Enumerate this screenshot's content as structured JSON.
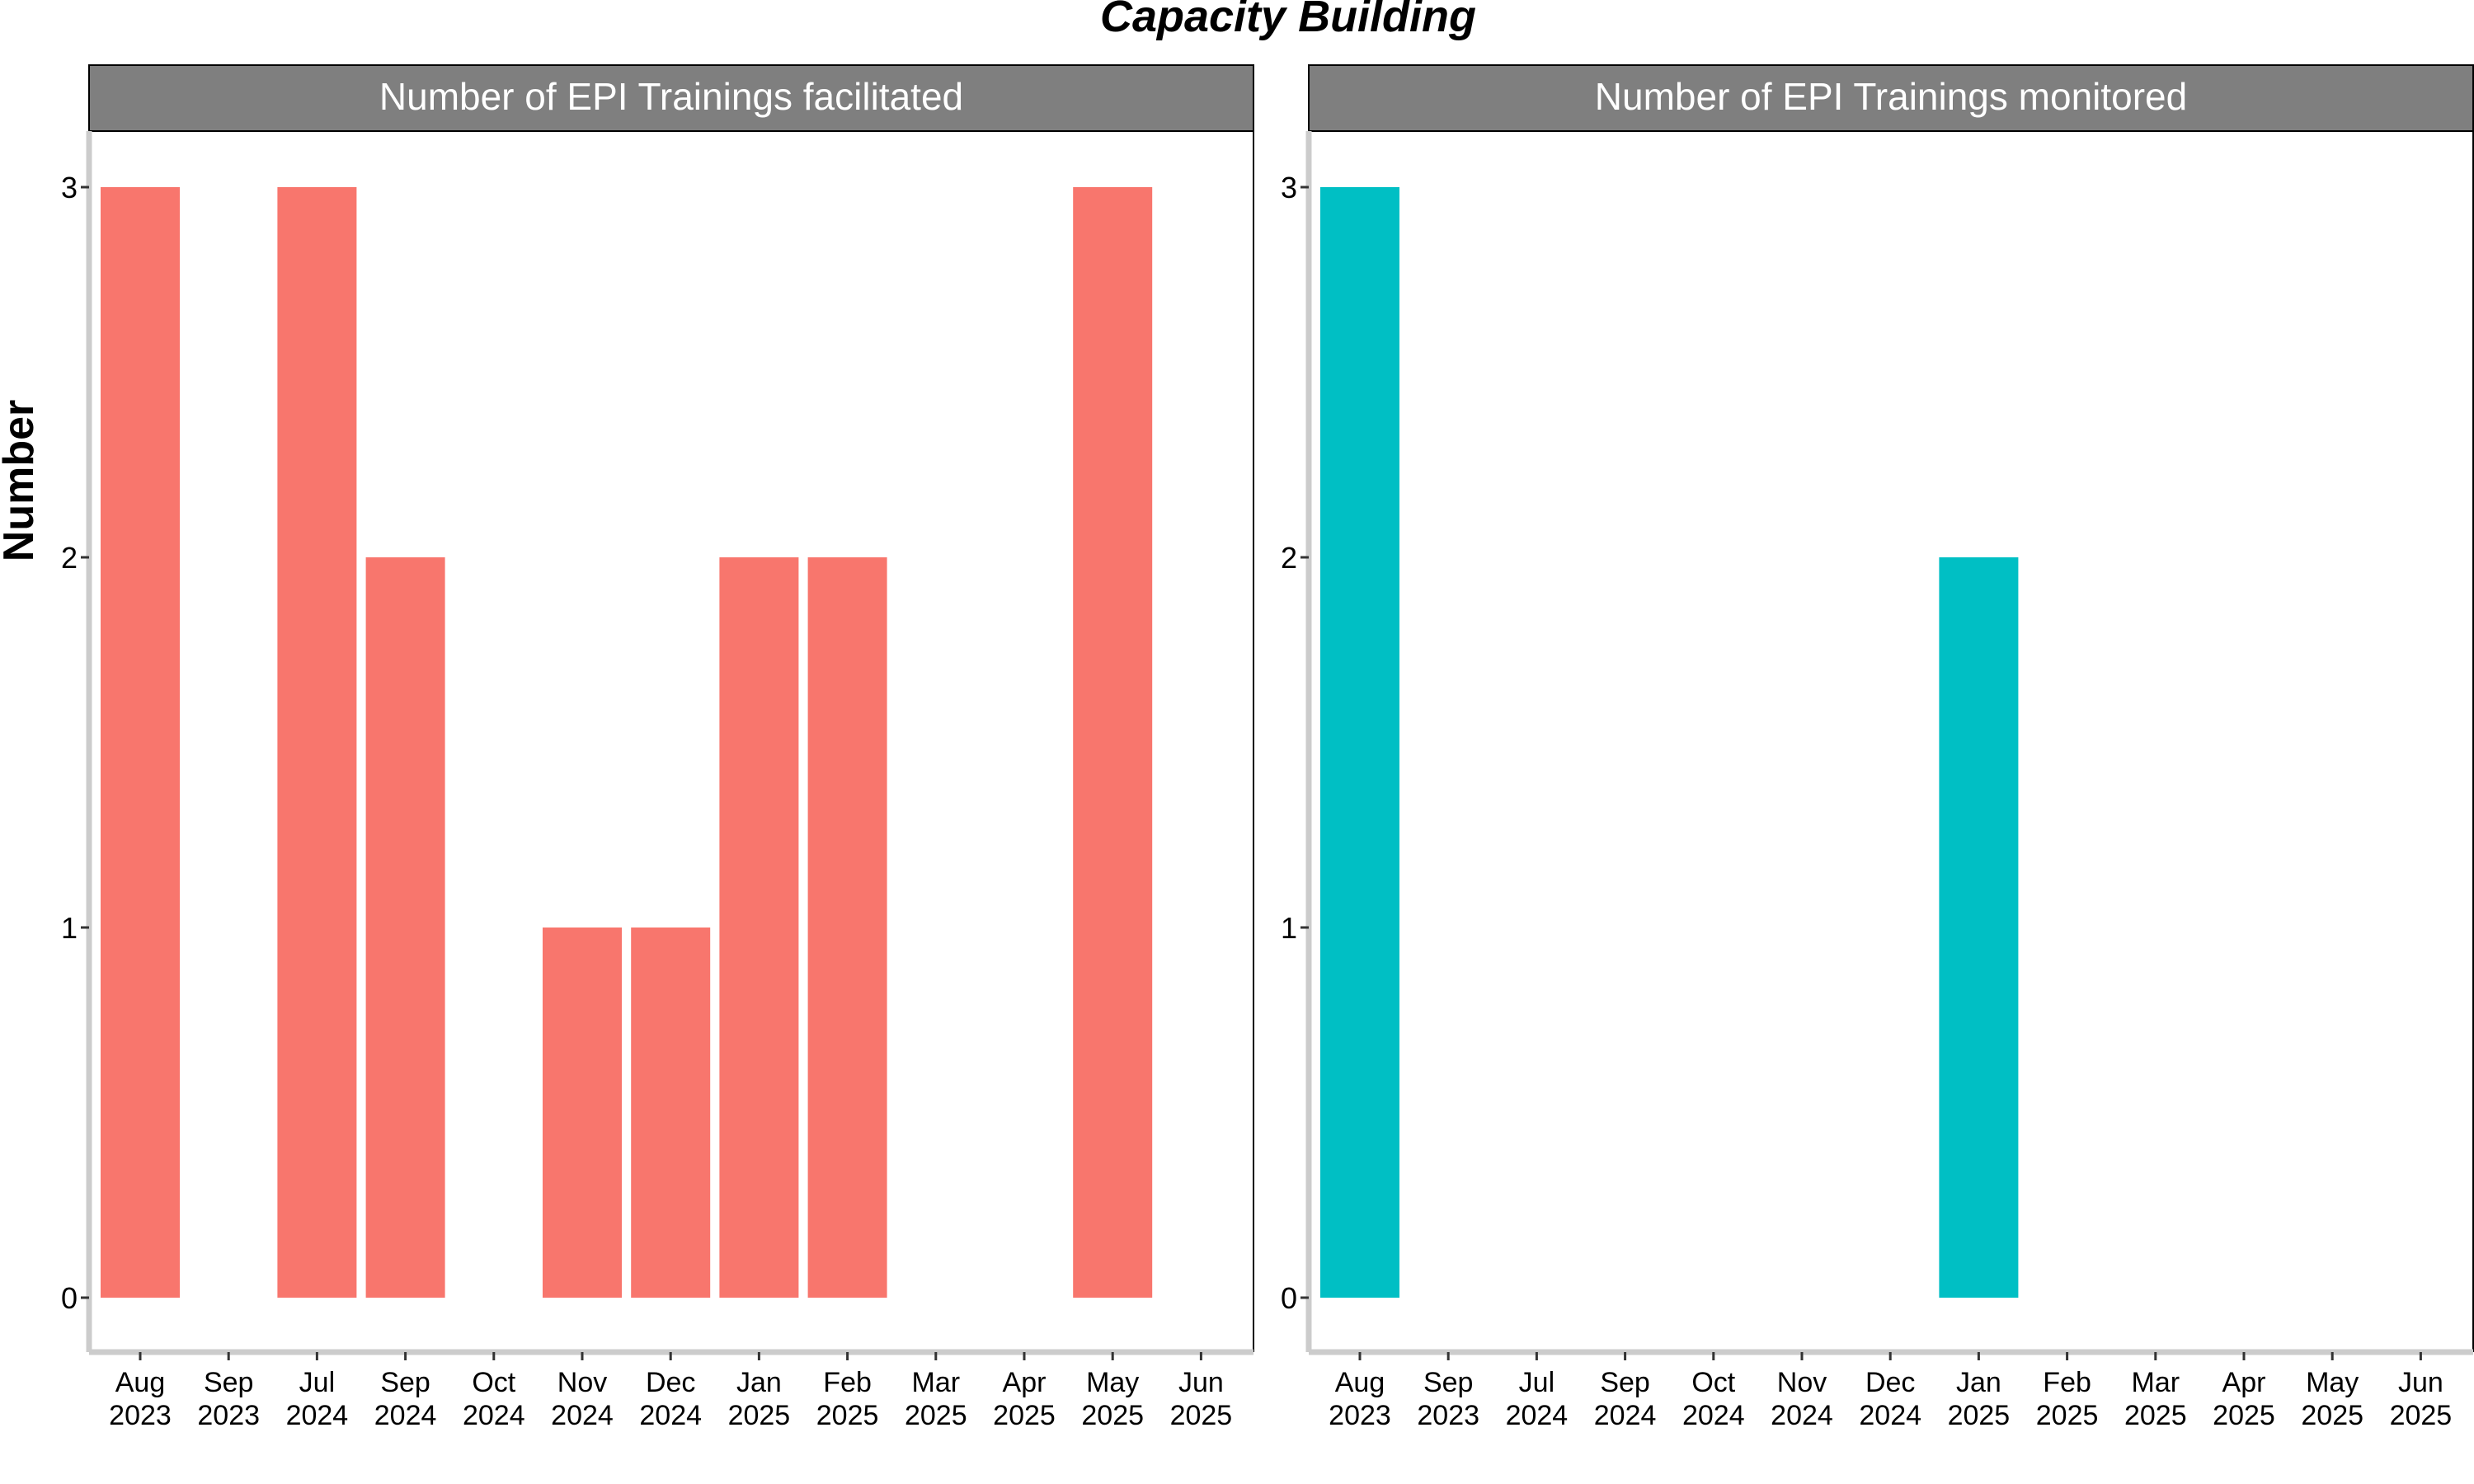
{
  "chart_data": {
    "type": "bar",
    "title": "Capacity Building",
    "ylabel": "Number",
    "xlabel": "",
    "ylim": [
      0,
      3
    ],
    "y_ticks": [
      "0",
      "1",
      "2",
      "3"
    ],
    "categories": [
      [
        "Aug",
        "2023"
      ],
      [
        "Sep",
        "2023"
      ],
      [
        "Jul",
        "2024"
      ],
      [
        "Sep",
        "2024"
      ],
      [
        "Oct",
        "2024"
      ],
      [
        "Nov",
        "2024"
      ],
      [
        "Dec",
        "2024"
      ],
      [
        "Jan",
        "2025"
      ],
      [
        "Feb",
        "2025"
      ],
      [
        "Mar",
        "2025"
      ],
      [
        "Apr",
        "2025"
      ],
      [
        "May",
        "2025"
      ],
      [
        "Jun",
        "2025"
      ]
    ],
    "panels": [
      {
        "strip": "Number of EPI Trainings facilitated",
        "color": "#F8766D",
        "values": [
          3,
          null,
          3,
          2,
          null,
          1,
          1,
          2,
          2,
          null,
          null,
          3,
          null
        ]
      },
      {
        "strip": "Number of EPI Trainings monitored",
        "color": "#00BFC4",
        "values": [
          3,
          null,
          null,
          null,
          null,
          null,
          null,
          2,
          null,
          null,
          null,
          null,
          null
        ]
      }
    ],
    "strip_color": "#7f7f7f",
    "axis_color": "#cccccc",
    "grid": false,
    "legend": "none"
  }
}
